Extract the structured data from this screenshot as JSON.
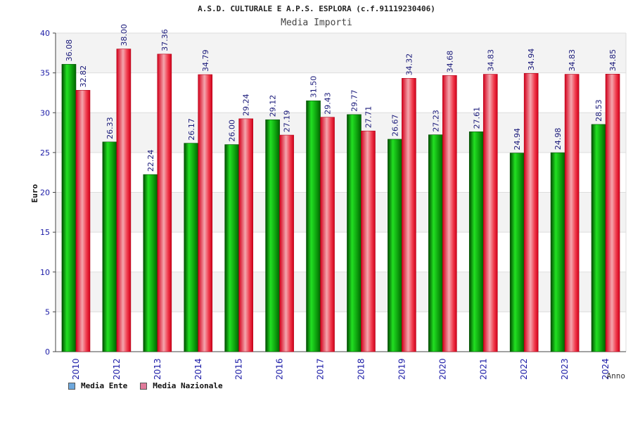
{
  "chart_data": {
    "type": "bar",
    "title": "A.S.D. CULTURALE E A.P.S. ESPLORA (c.f.91119230406)",
    "subtitle": "Media Importi",
    "xlabel": "Anno",
    "ylabel": "Euro",
    "ylim": [
      0,
      40
    ],
    "yticks": [
      0,
      5,
      10,
      15,
      20,
      25,
      30,
      35,
      40
    ],
    "grid": true,
    "legend_placement": "bottom-left",
    "categories": [
      "2010",
      "2012",
      "2013",
      "2014",
      "2015",
      "2016",
      "2017",
      "2018",
      "2019",
      "2020",
      "2021",
      "2022",
      "2023",
      "2024"
    ],
    "series": [
      {
        "name": "Media Ente",
        "values": [
          36.08,
          26.33,
          22.24,
          26.17,
          26.0,
          29.12,
          31.5,
          29.77,
          26.67,
          27.23,
          27.61,
          24.94,
          24.98,
          28.53
        ],
        "labels": [
          "36.08",
          "26.33",
          "22.24",
          "26.17",
          "26.00",
          "29.12",
          "31.50",
          "29.77",
          "26.67",
          "27.23",
          "27.61",
          "24.94",
          "24.98",
          "28.53"
        ]
      },
      {
        "name": "Media Nazionale",
        "values": [
          32.82,
          38.0,
          37.36,
          34.79,
          29.24,
          27.19,
          29.43,
          27.71,
          34.32,
          34.68,
          34.83,
          34.94,
          34.83,
          34.85
        ],
        "labels": [
          "32.82",
          "38.00",
          "37.36",
          "34.79",
          "29.24",
          "27.19",
          "29.43",
          "27.71",
          "34.32",
          "34.68",
          "34.83",
          "34.94",
          "34.83",
          "34.85"
        ]
      }
    ],
    "legend": [
      {
        "name": "Media Ente",
        "color": "#6fa8dc"
      },
      {
        "name": "Media Nazionale",
        "color": "#e07a9a"
      }
    ],
    "colors": {
      "ente_dark": "#006400",
      "ente_light": "#19e619",
      "naz_dark": "#e0001e",
      "naz_light": "#f29aa4",
      "axis_text": "#1a1aa6"
    }
  }
}
